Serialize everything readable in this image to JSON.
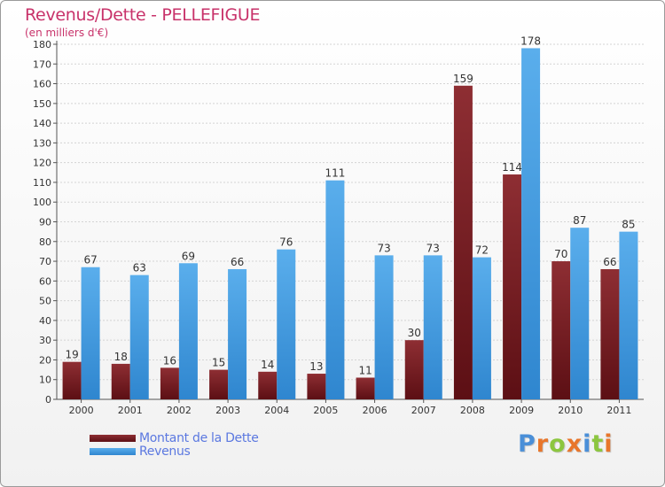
{
  "title": "Revenus/Dette - PELLEFIGUE",
  "unit": "(en milliers d'€)",
  "logo": {
    "text": "Proxiti",
    "letter_colors": [
      "#4a8fd8",
      "#e8762b",
      "#8cc63f",
      "#e8762b",
      "#4a8fd8",
      "#8cc63f",
      "#e8762b"
    ]
  },
  "colors": {
    "dette": "#7a1f24",
    "revenus": "#4ea3e6",
    "title": "#c8326a"
  },
  "chart_data": {
    "type": "bar",
    "title": "Revenus/Dette - PELLEFIGUE",
    "ylabel": "(en milliers d'€)",
    "ylim": [
      0,
      180
    ],
    "yticks": [
      0,
      10,
      20,
      30,
      40,
      50,
      60,
      70,
      80,
      90,
      100,
      110,
      120,
      130,
      140,
      150,
      160,
      170,
      180
    ],
    "grid": true,
    "legend_position": "bottom",
    "categories": [
      "2000",
      "2001",
      "2002",
      "2003",
      "2004",
      "2005",
      "2006",
      "2007",
      "2008",
      "2009",
      "2010",
      "2011"
    ],
    "series": [
      {
        "name": "Montant de la Dette",
        "values": [
          19,
          18,
          16,
          15,
          14,
          13,
          11,
          30,
          159,
          114,
          70,
          66
        ]
      },
      {
        "name": "Revenus",
        "values": [
          67,
          63,
          69,
          66,
          76,
          111,
          73,
          73,
          72,
          178,
          87,
          85
        ]
      }
    ]
  }
}
